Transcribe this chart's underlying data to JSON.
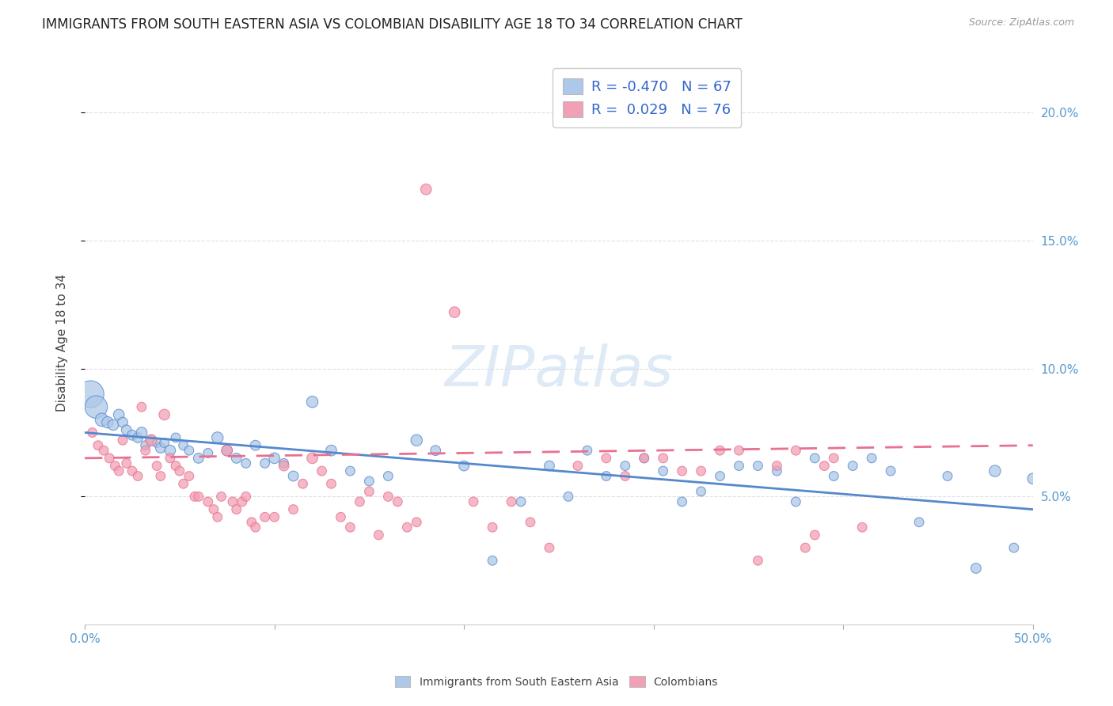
{
  "title": "IMMIGRANTS FROM SOUTH EASTERN ASIA VS COLOMBIAN DISABILITY AGE 18 TO 34 CORRELATION CHART",
  "source": "Source: ZipAtlas.com",
  "ylabel": "Disability Age 18 to 34",
  "xlim": [
    0.0,
    0.5
  ],
  "ylim": [
    0.0,
    0.22
  ],
  "watermark_text": "ZIPatlas",
  "blue_color": "#adc8e8",
  "pink_color": "#f2a0b5",
  "blue_line_color": "#5588cc",
  "pink_line_color": "#e87090",
  "legend_R_blue": "-0.470",
  "legend_N_blue": "67",
  "legend_R_pink": "0.029",
  "legend_N_pink": "76",
  "blue_points": [
    [
      0.003,
      0.09,
      500
    ],
    [
      0.006,
      0.085,
      350
    ],
    [
      0.009,
      0.08,
      120
    ],
    [
      0.012,
      0.079,
      90
    ],
    [
      0.015,
      0.078,
      80
    ],
    [
      0.018,
      0.082,
      80
    ],
    [
      0.02,
      0.079,
      70
    ],
    [
      0.022,
      0.076,
      70
    ],
    [
      0.025,
      0.074,
      70
    ],
    [
      0.028,
      0.073,
      70
    ],
    [
      0.03,
      0.075,
      80
    ],
    [
      0.032,
      0.07,
      60
    ],
    [
      0.035,
      0.072,
      70
    ],
    [
      0.038,
      0.071,
      60
    ],
    [
      0.04,
      0.069,
      70
    ],
    [
      0.042,
      0.071,
      60
    ],
    [
      0.045,
      0.068,
      80
    ],
    [
      0.048,
      0.073,
      60
    ],
    [
      0.052,
      0.07,
      60
    ],
    [
      0.055,
      0.068,
      60
    ],
    [
      0.06,
      0.065,
      70
    ],
    [
      0.065,
      0.067,
      60
    ],
    [
      0.07,
      0.073,
      90
    ],
    [
      0.075,
      0.068,
      80
    ],
    [
      0.08,
      0.065,
      70
    ],
    [
      0.085,
      0.063,
      60
    ],
    [
      0.09,
      0.07,
      70
    ],
    [
      0.095,
      0.063,
      60
    ],
    [
      0.1,
      0.065,
      80
    ],
    [
      0.105,
      0.063,
      60
    ],
    [
      0.11,
      0.058,
      70
    ],
    [
      0.12,
      0.087,
      90
    ],
    [
      0.13,
      0.068,
      80
    ],
    [
      0.14,
      0.06,
      60
    ],
    [
      0.15,
      0.056,
      60
    ],
    [
      0.16,
      0.058,
      60
    ],
    [
      0.175,
      0.072,
      90
    ],
    [
      0.185,
      0.068,
      70
    ],
    [
      0.2,
      0.062,
      70
    ],
    [
      0.215,
      0.025,
      60
    ],
    [
      0.23,
      0.048,
      60
    ],
    [
      0.245,
      0.062,
      70
    ],
    [
      0.255,
      0.05,
      60
    ],
    [
      0.265,
      0.068,
      60
    ],
    [
      0.275,
      0.058,
      60
    ],
    [
      0.285,
      0.062,
      60
    ],
    [
      0.295,
      0.065,
      60
    ],
    [
      0.305,
      0.06,
      60
    ],
    [
      0.315,
      0.048,
      60
    ],
    [
      0.325,
      0.052,
      60
    ],
    [
      0.335,
      0.058,
      60
    ],
    [
      0.345,
      0.062,
      60
    ],
    [
      0.355,
      0.062,
      60
    ],
    [
      0.365,
      0.06,
      60
    ],
    [
      0.375,
      0.048,
      60
    ],
    [
      0.385,
      0.065,
      60
    ],
    [
      0.395,
      0.058,
      60
    ],
    [
      0.405,
      0.062,
      60
    ],
    [
      0.415,
      0.065,
      60
    ],
    [
      0.425,
      0.06,
      60
    ],
    [
      0.44,
      0.04,
      60
    ],
    [
      0.455,
      0.058,
      60
    ],
    [
      0.47,
      0.022,
      70
    ],
    [
      0.48,
      0.06,
      90
    ],
    [
      0.49,
      0.03,
      60
    ],
    [
      0.5,
      0.057,
      80
    ]
  ],
  "pink_points": [
    [
      0.004,
      0.075,
      60
    ],
    [
      0.007,
      0.07,
      60
    ],
    [
      0.01,
      0.068,
      60
    ],
    [
      0.013,
      0.065,
      60
    ],
    [
      0.016,
      0.062,
      60
    ],
    [
      0.018,
      0.06,
      60
    ],
    [
      0.02,
      0.072,
      60
    ],
    [
      0.022,
      0.063,
      60
    ],
    [
      0.025,
      0.06,
      60
    ],
    [
      0.028,
      0.058,
      60
    ],
    [
      0.03,
      0.085,
      60
    ],
    [
      0.032,
      0.068,
      60
    ],
    [
      0.035,
      0.072,
      90
    ],
    [
      0.038,
      0.062,
      60
    ],
    [
      0.04,
      0.058,
      60
    ],
    [
      0.042,
      0.082,
      80
    ],
    [
      0.045,
      0.065,
      60
    ],
    [
      0.048,
      0.062,
      60
    ],
    [
      0.05,
      0.06,
      60
    ],
    [
      0.052,
      0.055,
      60
    ],
    [
      0.055,
      0.058,
      60
    ],
    [
      0.058,
      0.05,
      60
    ],
    [
      0.06,
      0.05,
      60
    ],
    [
      0.065,
      0.048,
      60
    ],
    [
      0.068,
      0.045,
      60
    ],
    [
      0.07,
      0.042,
      60
    ],
    [
      0.072,
      0.05,
      60
    ],
    [
      0.075,
      0.068,
      80
    ],
    [
      0.078,
      0.048,
      60
    ],
    [
      0.08,
      0.045,
      60
    ],
    [
      0.083,
      0.048,
      60
    ],
    [
      0.085,
      0.05,
      60
    ],
    [
      0.088,
      0.04,
      60
    ],
    [
      0.09,
      0.038,
      60
    ],
    [
      0.095,
      0.042,
      60
    ],
    [
      0.1,
      0.042,
      60
    ],
    [
      0.105,
      0.062,
      70
    ],
    [
      0.11,
      0.045,
      60
    ],
    [
      0.115,
      0.055,
      60
    ],
    [
      0.12,
      0.065,
      80
    ],
    [
      0.125,
      0.06,
      60
    ],
    [
      0.13,
      0.055,
      60
    ],
    [
      0.135,
      0.042,
      60
    ],
    [
      0.14,
      0.038,
      60
    ],
    [
      0.145,
      0.048,
      60
    ],
    [
      0.15,
      0.052,
      60
    ],
    [
      0.155,
      0.035,
      60
    ],
    [
      0.16,
      0.05,
      60
    ],
    [
      0.165,
      0.048,
      60
    ],
    [
      0.17,
      0.038,
      60
    ],
    [
      0.175,
      0.04,
      60
    ],
    [
      0.18,
      0.17,
      80
    ],
    [
      0.195,
      0.122,
      80
    ],
    [
      0.205,
      0.048,
      60
    ],
    [
      0.215,
      0.038,
      60
    ],
    [
      0.225,
      0.048,
      60
    ],
    [
      0.235,
      0.04,
      60
    ],
    [
      0.245,
      0.03,
      60
    ],
    [
      0.26,
      0.062,
      60
    ],
    [
      0.275,
      0.065,
      60
    ],
    [
      0.285,
      0.058,
      60
    ],
    [
      0.295,
      0.065,
      60
    ],
    [
      0.305,
      0.065,
      60
    ],
    [
      0.315,
      0.06,
      60
    ],
    [
      0.325,
      0.06,
      60
    ],
    [
      0.335,
      0.068,
      60
    ],
    [
      0.345,
      0.068,
      60
    ],
    [
      0.355,
      0.025,
      60
    ],
    [
      0.365,
      0.062,
      60
    ],
    [
      0.375,
      0.068,
      60
    ],
    [
      0.38,
      0.03,
      60
    ],
    [
      0.385,
      0.035,
      60
    ],
    [
      0.39,
      0.062,
      60
    ],
    [
      0.395,
      0.065,
      60
    ],
    [
      0.41,
      0.038,
      60
    ]
  ],
  "grid_color": "#dddddd",
  "bg_color": "#ffffff",
  "title_fontsize": 12,
  "axis_label_fontsize": 11,
  "tick_fontsize": 11,
  "legend_fontsize": 13,
  "blue_line_start_y": 0.075,
  "blue_line_end_y": 0.045,
  "pink_line_start_y": 0.065,
  "pink_line_end_y": 0.07
}
